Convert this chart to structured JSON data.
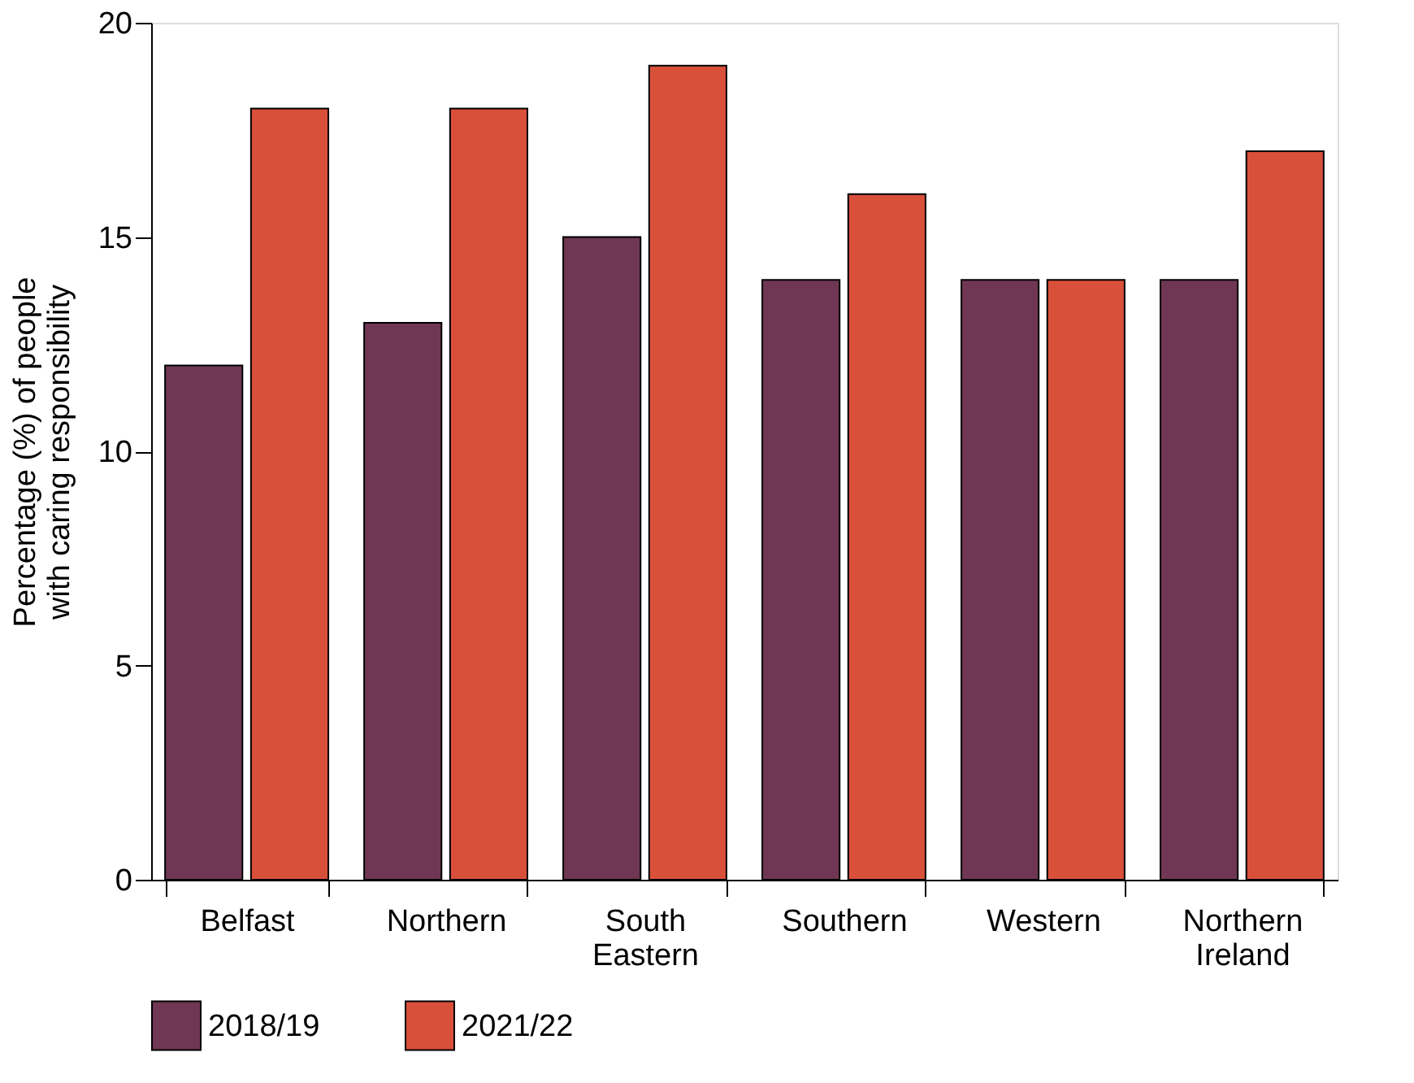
{
  "chart_data": {
    "type": "bar",
    "ylabel": "Percentage (%) of people with caring responsibility",
    "categories": [
      "Belfast",
      "Northern",
      "South Eastern",
      "Southern",
      "Western",
      "Northern Ireland"
    ],
    "series": [
      {
        "name": "2018/19",
        "color": "#6f3753",
        "values": [
          12,
          13,
          15,
          14,
          14,
          14
        ]
      },
      {
        "name": "2021/22",
        "color": "#d9503a",
        "values": [
          18,
          18,
          19,
          16,
          14,
          17
        ]
      }
    ],
    "ylim": [
      0,
      20
    ],
    "yticks": [
      0,
      5,
      10,
      15,
      20
    ],
    "grid": false,
    "legend": "bottom"
  }
}
